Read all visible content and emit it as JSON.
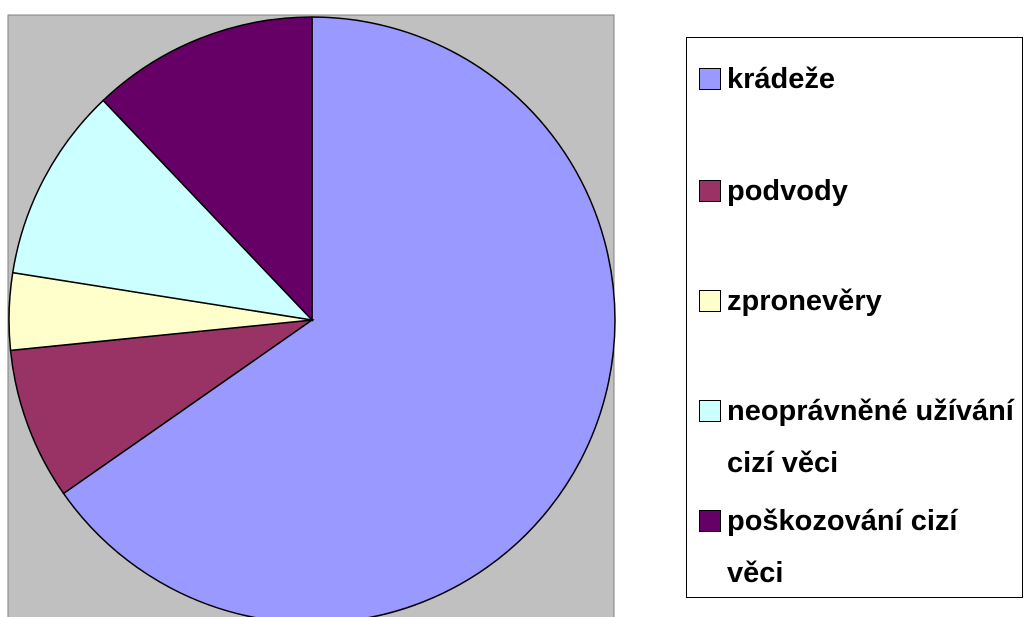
{
  "chart_data": {
    "type": "pie",
    "categories": [
      "krádeže",
      "podvody",
      "zpronevěry",
      "neoprávněné užívání cizí věci",
      "poškozování cizí věci"
    ],
    "values": [
      65.3,
      8.1,
      4.1,
      10.4,
      12.1
    ],
    "colors": [
      "#9999ff",
      "#993366",
      "#ffffcc",
      "#ccffff",
      "#660066"
    ],
    "legend": "right"
  }
}
